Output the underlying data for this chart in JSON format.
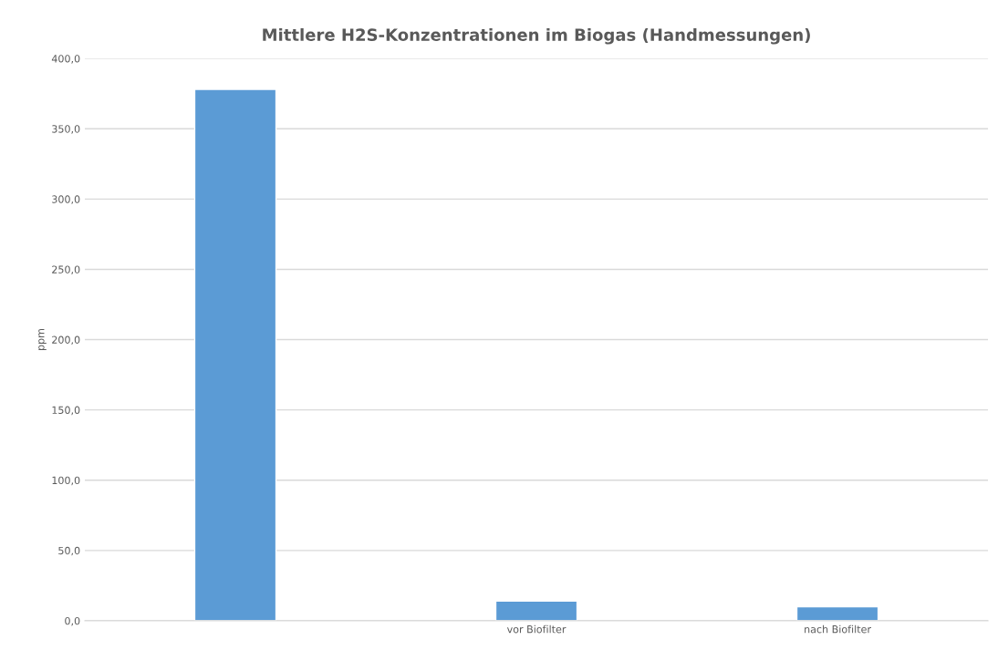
{
  "chart_data": {
    "type": "bar",
    "title": "Mittlere H2S-Konzentrationen im Biogas (Handmessungen)",
    "ylabel": "ppm",
    "categories": [
      null,
      "vor Biofilter",
      "nach Biofilter"
    ],
    "values": [
      378,
      14,
      10
    ],
    "color": "#5b9bd5",
    "ylim": [
      0,
      400
    ],
    "yticks": [
      {
        "value": 0,
        "label": "0,0"
      },
      {
        "value": 50,
        "label": "50,0"
      },
      {
        "value": 100,
        "label": "100,0"
      },
      {
        "value": 150,
        "label": "150,0"
      },
      {
        "value": 200,
        "label": "200,0"
      },
      {
        "value": 250,
        "label": "250,0"
      },
      {
        "value": 300,
        "label": "300,0"
      },
      {
        "value": 350,
        "label": "350,0"
      },
      {
        "value": 400,
        "label": "400,0"
      }
    ],
    "grid": "y"
  }
}
